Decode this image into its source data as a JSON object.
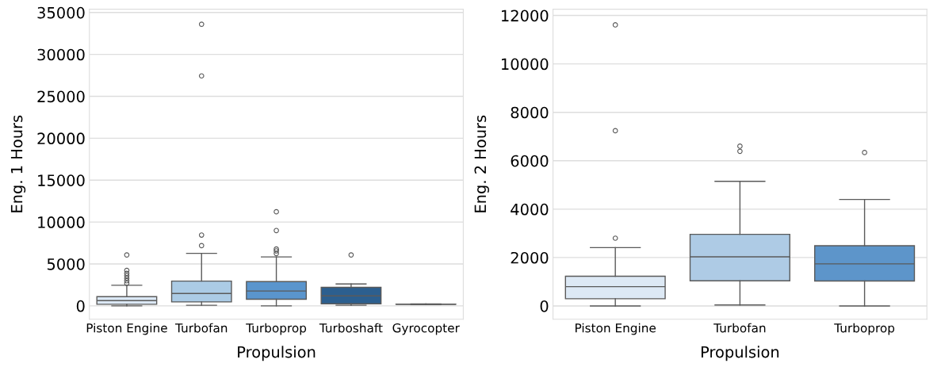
{
  "chart_data": [
    {
      "type": "box",
      "xlabel": "Propulsion",
      "ylabel": "Eng. 1 Hours",
      "categories": [
        "Piston Engine",
        "Turbofan",
        "Turboprop",
        "Turboshaft",
        "Gyrocopter"
      ],
      "colors": [
        "#dbe8f5",
        "#abcbe5",
        "#5a95cd",
        "#2c5f8f",
        "#1b4676"
      ],
      "ylim": [
        -1600,
        35400
      ],
      "yticks": [
        0,
        5000,
        10000,
        15000,
        20000,
        25000,
        30000,
        35000
      ],
      "grid": "y",
      "boxes": [
        {
          "low": 0,
          "q1": 190,
          "median": 630,
          "q3": 1100,
          "high": 2460,
          "outliers": [
            2700,
            3000,
            3300,
            3600,
            3880,
            4230,
            6080
          ]
        },
        {
          "low": 70,
          "q1": 470,
          "median": 1480,
          "q3": 2960,
          "high": 6270,
          "outliers": [
            7190,
            8450,
            27440,
            33600
          ]
        },
        {
          "low": 0,
          "q1": 790,
          "median": 1770,
          "q3": 2900,
          "high": 5840,
          "outliers": [
            6250,
            6560,
            6780,
            8990,
            11230
          ]
        },
        {
          "low": 70,
          "q1": 250,
          "median": 1200,
          "q3": 2210,
          "high": 2610,
          "outliers": [
            6080
          ]
        },
        {
          "low": 180,
          "q1": 190,
          "median": 200,
          "q3": 210,
          "high": 220
        }
      ]
    },
    {
      "type": "box",
      "xlabel": "Propulsion",
      "ylabel": "Eng. 2 Hours",
      "categories": [
        "Piston Engine",
        "Turbofan",
        "Turboprop"
      ],
      "colors": [
        "#dde9f5",
        "#aecbe5",
        "#5d95ca"
      ],
      "ylim": [
        -550,
        12260
      ],
      "yticks": [
        0,
        2000,
        4000,
        6000,
        8000,
        10000,
        12000
      ],
      "grid": "y",
      "boxes": [
        {
          "low": 0,
          "q1": 300,
          "median": 800,
          "q3": 1230,
          "high": 2410,
          "outliers": [
            2800,
            7240,
            11610
          ]
        },
        {
          "low": 40,
          "q1": 1040,
          "median": 2030,
          "q3": 2960,
          "high": 5150,
          "outliers": [
            6390,
            6600
          ]
        },
        {
          "low": 0,
          "q1": 1030,
          "median": 1740,
          "q3": 2490,
          "high": 4400,
          "outliers": [
            6340
          ]
        }
      ]
    }
  ]
}
